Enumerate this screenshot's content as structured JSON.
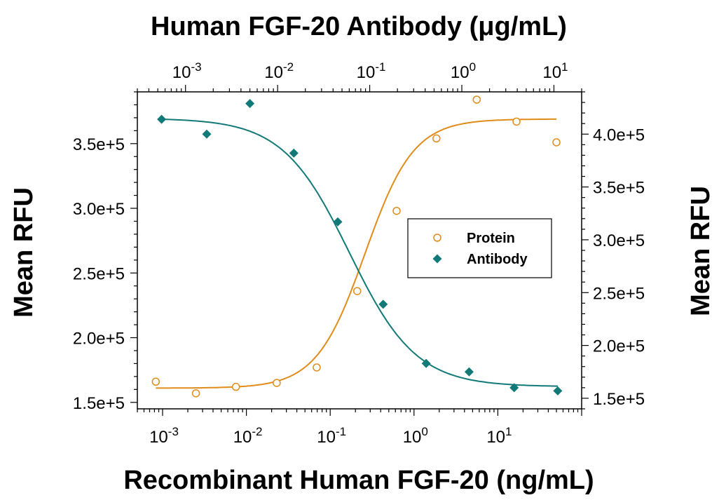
{
  "chart_data": {
    "type": "scatter",
    "title": "Human FGF-20 Antibody (μg/mL)",
    "xlabel": "Recombinant Human FGF-20 (ng/mL)",
    "ylabel_left": "Mean RFU",
    "ylabel_right": "Mean RFU",
    "x_scale": "log",
    "top_axis": {
      "xlim": [
        0.0003,
        20
      ],
      "ticks": [
        {
          "value": 0.001,
          "base": "10",
          "exp": "-3"
        },
        {
          "value": 0.01,
          "base": "10",
          "exp": "-2"
        },
        {
          "value": 0.1,
          "base": "10",
          "exp": "-1"
        },
        {
          "value": 1,
          "base": "10",
          "exp": "0"
        },
        {
          "value": 10,
          "base": "10",
          "exp": "1"
        }
      ]
    },
    "bottom_axis": {
      "xlim": [
        0.0005,
        100
      ],
      "ticks": [
        {
          "value": 0.001,
          "base": "10",
          "exp": "-3"
        },
        {
          "value": 0.01,
          "base": "10",
          "exp": "-2"
        },
        {
          "value": 0.1,
          "base": "10",
          "exp": "-1"
        },
        {
          "value": 1,
          "base": "10",
          "exp": "0"
        },
        {
          "value": 10,
          "base": "10",
          "exp": "1"
        }
      ]
    },
    "left_axis": {
      "ylim": [
        145000,
        390000
      ],
      "ticks": [
        {
          "value": 150000,
          "label": "1.5e+5"
        },
        {
          "value": 200000,
          "label": "2.0e+5"
        },
        {
          "value": 250000,
          "label": "2.5e+5"
        },
        {
          "value": 300000,
          "label": "3.0e+5"
        },
        {
          "value": 350000,
          "label": "3.5e+5"
        }
      ]
    },
    "right_axis": {
      "ylim": [
        140000,
        440000
      ],
      "ticks": [
        {
          "value": 150000,
          "label": "1.5e+5"
        },
        {
          "value": 200000,
          "label": "2.0e+5"
        },
        {
          "value": 250000,
          "label": "2.5e+5"
        },
        {
          "value": 300000,
          "label": "3.0e+5"
        },
        {
          "value": 350000,
          "label": "3.5e+5"
        },
        {
          "value": 400000,
          "label": "4.0e+5"
        }
      ]
    },
    "series": [
      {
        "name": "Protein",
        "color": "#E08C1A",
        "marker": "open-circle",
        "axis": "bottom-left",
        "x": [
          0.00083,
          0.0025,
          0.0075,
          0.023,
          0.069,
          0.21,
          0.62,
          1.85,
          5.6,
          16.7,
          50
        ],
        "y": [
          166000,
          157000,
          162000,
          165000,
          177000,
          236000,
          298000,
          354000,
          384000,
          367000,
          351000
        ],
        "fit": {
          "bottom": 161000,
          "top": 369000,
          "ec50": 0.26,
          "hill": 1.5
        }
      },
      {
        "name": "Antibody",
        "color": "#117A78",
        "marker": "filled-diamond",
        "axis": "top-right",
        "x": [
          0.00055,
          0.0017,
          0.005,
          0.015,
          0.045,
          0.14,
          0.41,
          1.2,
          3.7,
          11
        ],
        "y": [
          414000,
          400000,
          429000,
          382000,
          317000,
          239000,
          183000,
          175000,
          160000,
          157000
        ],
        "fit": {
          "bottom": 161000,
          "top": 415000,
          "ec50": 0.06,
          "hill": 1.2
        }
      }
    ],
    "legend_position": "center-right",
    "grid": false
  }
}
